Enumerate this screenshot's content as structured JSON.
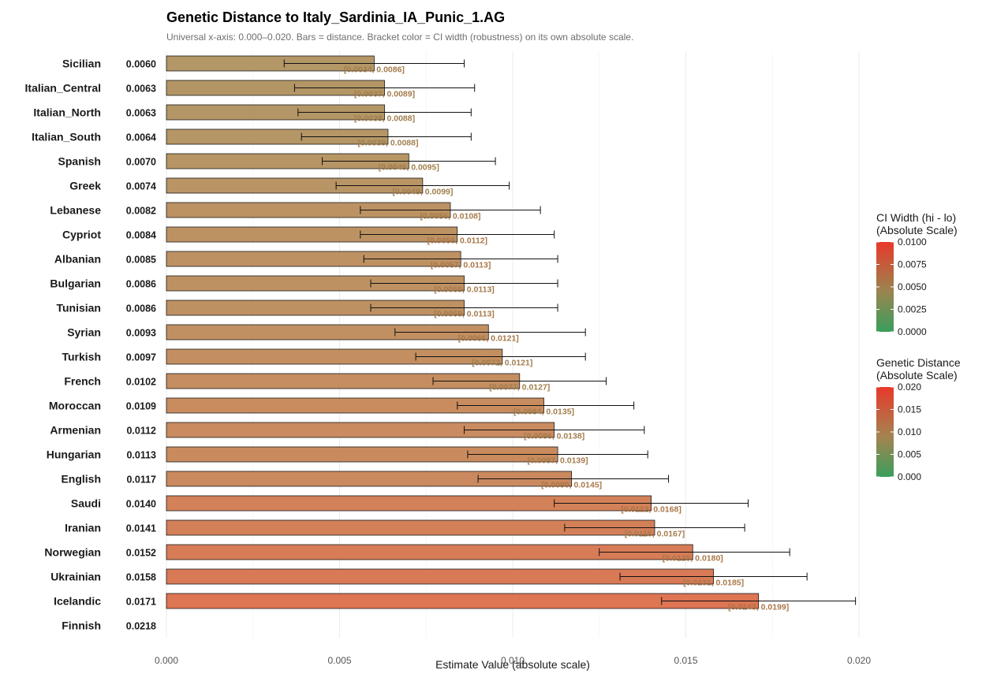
{
  "chart_data": {
    "type": "bar",
    "orientation": "horizontal",
    "title": "Genetic Distance to Italy_Sardinia_IA_Punic_1.AG",
    "subtitle": "Universal x-axis: 0.000–0.020. Bars = distance. Bracket color = CI width (robustness) on its own absolute scale.",
    "xlabel": "Estimate Value (absolute scale)",
    "xlim": [
      0,
      0.02
    ],
    "xticks": [
      "0.000",
      "0.005",
      "0.010",
      "0.015",
      "0.020"
    ],
    "grid": true,
    "categories": [
      "Sicilian",
      "Italian_Central",
      "Italian_North",
      "Italian_South",
      "Spanish",
      "Greek",
      "Lebanese",
      "Cypriot",
      "Albanian",
      "Bulgarian",
      "Tunisian",
      "Syrian",
      "Turkish",
      "French",
      "Moroccan",
      "Armenian",
      "Hungarian",
      "English",
      "Saudi",
      "Iranian",
      "Norwegian",
      "Ukrainian",
      "Icelandic",
      "Finnish"
    ],
    "value_labels": [
      "0.0060",
      "0.0063",
      "0.0063",
      "0.0064",
      "0.0070",
      "0.0074",
      "0.0082",
      "0.0084",
      "0.0085",
      "0.0086",
      "0.0086",
      "0.0093",
      "0.0097",
      "0.0102",
      "0.0109",
      "0.0112",
      "0.0113",
      "0.0117",
      "0.0140",
      "0.0141",
      "0.0152",
      "0.0158",
      "0.0171",
      "0.0218"
    ],
    "values": [
      0.006,
      0.0063,
      0.0063,
      0.0064,
      0.007,
      0.0074,
      0.0082,
      0.0084,
      0.0085,
      0.0086,
      0.0086,
      0.0093,
      0.0097,
      0.0102,
      0.0109,
      0.0112,
      0.0113,
      0.0117,
      0.014,
      0.0141,
      0.0152,
      0.0158,
      0.0171,
      0.0218
    ],
    "ci_lo": [
      0.0034,
      0.0037,
      0.0038,
      0.0039,
      0.0045,
      0.0049,
      0.0056,
      0.0056,
      0.0057,
      0.0059,
      0.0059,
      0.0066,
      0.0072,
      0.0077,
      0.0084,
      0.0086,
      0.0087,
      0.009,
      0.0112,
      0.0115,
      0.0125,
      0.0131,
      0.0143,
      null
    ],
    "ci_hi": [
      0.0086,
      0.0089,
      0.0088,
      0.0088,
      0.0095,
      0.0099,
      0.0108,
      0.0112,
      0.0113,
      0.0113,
      0.0113,
      0.0121,
      0.0121,
      0.0127,
      0.0135,
      0.0138,
      0.0139,
      0.0145,
      0.0168,
      0.0167,
      0.018,
      0.0185,
      0.0199,
      null
    ],
    "ci_labels": [
      "[0.0034, 0.0086]",
      "[0.0037, 0.0089]",
      "[0.0038, 0.0088]",
      "[0.0039, 0.0088]",
      "[0.0045, 0.0095]",
      "[0.0049, 0.0099]",
      "[0.0056, 0.0108]",
      "[0.0056, 0.0112]",
      "[0.0057, 0.0113]",
      "[0.0059, 0.0113]",
      "[0.0059, 0.0113]",
      "[0.0066, 0.0121]",
      "[0.0072, 0.0121]",
      "[0.0077, 0.0127]",
      "[0.0084, 0.0135]",
      "[0.0086, 0.0138]",
      "[0.0087, 0.0139]",
      "[0.0090, 0.0145]",
      "[0.0112, 0.0168]",
      "[0.0115, 0.0167]",
      "[0.0125, 0.0180]",
      "[0.0131, 0.0185]",
      "[0.0143, 0.0199]",
      ""
    ],
    "legends": [
      {
        "title_lines": [
          "CI Width (hi - lo)",
          "(Absolute Scale)"
        ],
        "ticks": [
          "0.0100",
          "0.0075",
          "0.0050",
          "0.0025",
          "0.0000"
        ],
        "range": [
          0,
          0.01
        ],
        "colors": [
          "#3a9e5c",
          "#9a8550",
          "#e8392a"
        ]
      },
      {
        "title_lines": [
          "Genetic Distance",
          "(Absolute Scale)"
        ],
        "ticks": [
          "0.020",
          "0.015",
          "0.010",
          "0.005",
          "0.000"
        ],
        "range": [
          0,
          0.02
        ],
        "colors": [
          "#3a9e5c",
          "#a58350",
          "#e8392a"
        ]
      }
    ],
    "legend_position": "right"
  }
}
